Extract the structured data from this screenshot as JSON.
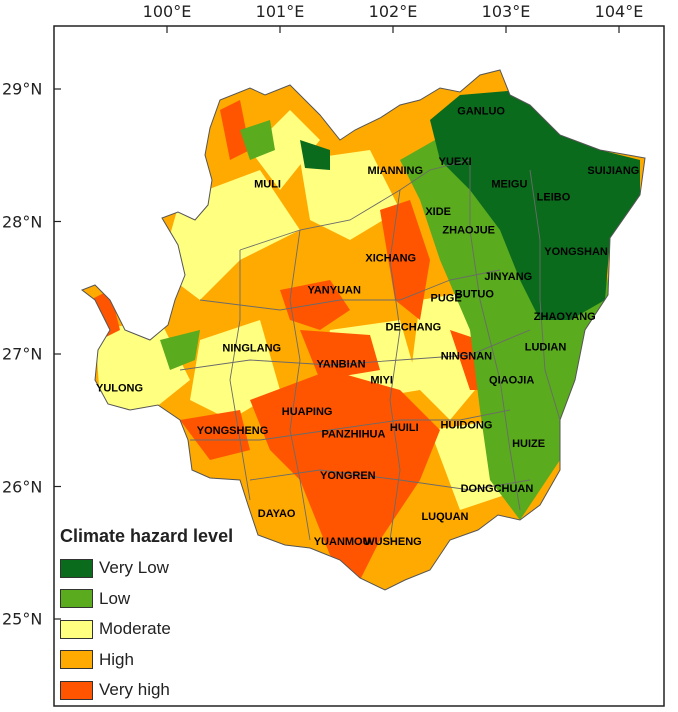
{
  "axes": {
    "longitude_ticks": [
      {
        "value": 100,
        "label": "100°E"
      },
      {
        "value": 101,
        "label": "101°E"
      },
      {
        "value": 102,
        "label": "102°E"
      },
      {
        "value": 103,
        "label": "103°E"
      },
      {
        "value": 104,
        "label": "104°E"
      }
    ],
    "latitude_ticks": [
      {
        "value": 29,
        "label": "29°N"
      },
      {
        "value": 28,
        "label": "28°N"
      },
      {
        "value": 27,
        "label": "27°N"
      },
      {
        "value": 26,
        "label": "26°N"
      },
      {
        "value": 25,
        "label": "25°N"
      }
    ]
  },
  "legend": {
    "title": "Climate hazard level",
    "items": [
      {
        "label": "Very Low",
        "color": "#0b6b1d"
      },
      {
        "label": "Low",
        "color": "#5aab1e"
      },
      {
        "label": "Moderate",
        "color": "#ffff80"
      },
      {
        "label": "High",
        "color": "#ffaa00"
      },
      {
        "label": "Very high",
        "color": "#ff5500"
      }
    ]
  },
  "colors": {
    "county_border": "#6b6b6b",
    "frame": "#222222",
    "label": "#000000"
  },
  "counties": [
    {
      "name": "GANLUO",
      "lon": 102.78,
      "lat": 28.83
    },
    {
      "name": "YUEXI",
      "lon": 102.55,
      "lat": 28.45
    },
    {
      "name": "MIANNING",
      "lon": 102.02,
      "lat": 28.38
    },
    {
      "name": "MEIGU",
      "lon": 103.03,
      "lat": 28.28
    },
    {
      "name": "SUIJIANG",
      "lon": 103.95,
      "lat": 28.38
    },
    {
      "name": "LEIBO",
      "lon": 103.42,
      "lat": 28.18
    },
    {
      "name": "MULI",
      "lon": 100.89,
      "lat": 28.28
    },
    {
      "name": "XIDE",
      "lon": 102.4,
      "lat": 28.07
    },
    {
      "name": "ZHAOJUE",
      "lon": 102.67,
      "lat": 27.93
    },
    {
      "name": "YONGSHAN",
      "lon": 103.62,
      "lat": 27.77
    },
    {
      "name": "XICHANG",
      "lon": 101.98,
      "lat": 27.72
    },
    {
      "name": "JINYANG",
      "lon": 103.02,
      "lat": 27.58
    },
    {
      "name": "YANYUAN",
      "lon": 101.48,
      "lat": 27.48
    },
    {
      "name": "PUGE",
      "lon": 102.47,
      "lat": 27.42
    },
    {
      "name": "BUTUO",
      "lon": 102.72,
      "lat": 27.45
    },
    {
      "name": "ZHAOYANG",
      "lon": 103.52,
      "lat": 27.28
    },
    {
      "name": "DECHANG",
      "lon": 102.18,
      "lat": 27.2
    },
    {
      "name": "LUDIAN",
      "lon": 103.35,
      "lat": 27.05
    },
    {
      "name": "NINGLANG",
      "lon": 100.75,
      "lat": 27.04
    },
    {
      "name": "NINGNAN",
      "lon": 102.65,
      "lat": 26.98
    },
    {
      "name": "YANBIAN",
      "lon": 101.54,
      "lat": 26.92
    },
    {
      "name": "MIYI",
      "lon": 101.9,
      "lat": 26.8
    },
    {
      "name": "QIAOJIA",
      "lon": 103.05,
      "lat": 26.8
    },
    {
      "name": "YULONG",
      "lon": 99.58,
      "lat": 26.74
    },
    {
      "name": "HUAPING",
      "lon": 101.24,
      "lat": 26.56
    },
    {
      "name": "YONGSHENG",
      "lon": 100.58,
      "lat": 26.42
    },
    {
      "name": "PANZHIHUA",
      "lon": 101.65,
      "lat": 26.39
    },
    {
      "name": "HUILI",
      "lon": 102.1,
      "lat": 26.44
    },
    {
      "name": "HUIDONG",
      "lon": 102.65,
      "lat": 26.46
    },
    {
      "name": "HUIZE",
      "lon": 103.2,
      "lat": 26.32
    },
    {
      "name": "YONGREN",
      "lon": 101.6,
      "lat": 26.08
    },
    {
      "name": "DONGCHUAN",
      "lon": 102.92,
      "lat": 25.98
    },
    {
      "name": "DAYAO",
      "lon": 100.97,
      "lat": 25.79
    },
    {
      "name": "LUQUAN",
      "lon": 102.46,
      "lat": 25.77
    },
    {
      "name": "YUANMOU",
      "lon": 101.55,
      "lat": 25.58
    },
    {
      "name": "WUSHENG",
      "lon": 102.0,
      "lat": 25.58
    }
  ]
}
